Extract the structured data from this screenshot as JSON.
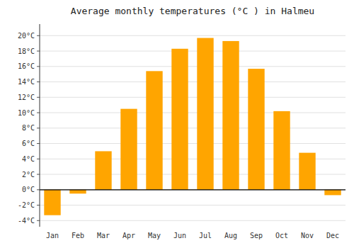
{
  "chart_data": {
    "type": "bar",
    "title": "Average monthly temperatures (°C ) in Halmeu",
    "categories": [
      "Jan",
      "Feb",
      "Mar",
      "Apr",
      "May",
      "Jun",
      "Jul",
      "Aug",
      "Sep",
      "Oct",
      "Nov",
      "Dec"
    ],
    "values": [
      -3.3,
      -0.5,
      5.0,
      10.5,
      15.4,
      18.3,
      19.7,
      19.3,
      15.7,
      10.2,
      4.8,
      -0.7
    ],
    "color": "#FFA500",
    "ylim": [
      -4.8,
      21.5
    ],
    "yticks": [
      {
        "value": -4,
        "label": "-4°C"
      },
      {
        "value": -2,
        "label": "-2°C"
      },
      {
        "value": 0,
        "label": "0°C"
      },
      {
        "value": 2,
        "label": "2°C"
      },
      {
        "value": 4,
        "label": "4°C"
      },
      {
        "value": 6,
        "label": "6°C"
      },
      {
        "value": 8,
        "label": "8°C"
      },
      {
        "value": 10,
        "label": "10°C"
      },
      {
        "value": 12,
        "label": "12°C"
      },
      {
        "value": 14,
        "label": "14°C"
      },
      {
        "value": 16,
        "label": "16°C"
      },
      {
        "value": 18,
        "label": "18°C"
      },
      {
        "value": 20,
        "label": "20°C"
      }
    ],
    "grid": true
  }
}
